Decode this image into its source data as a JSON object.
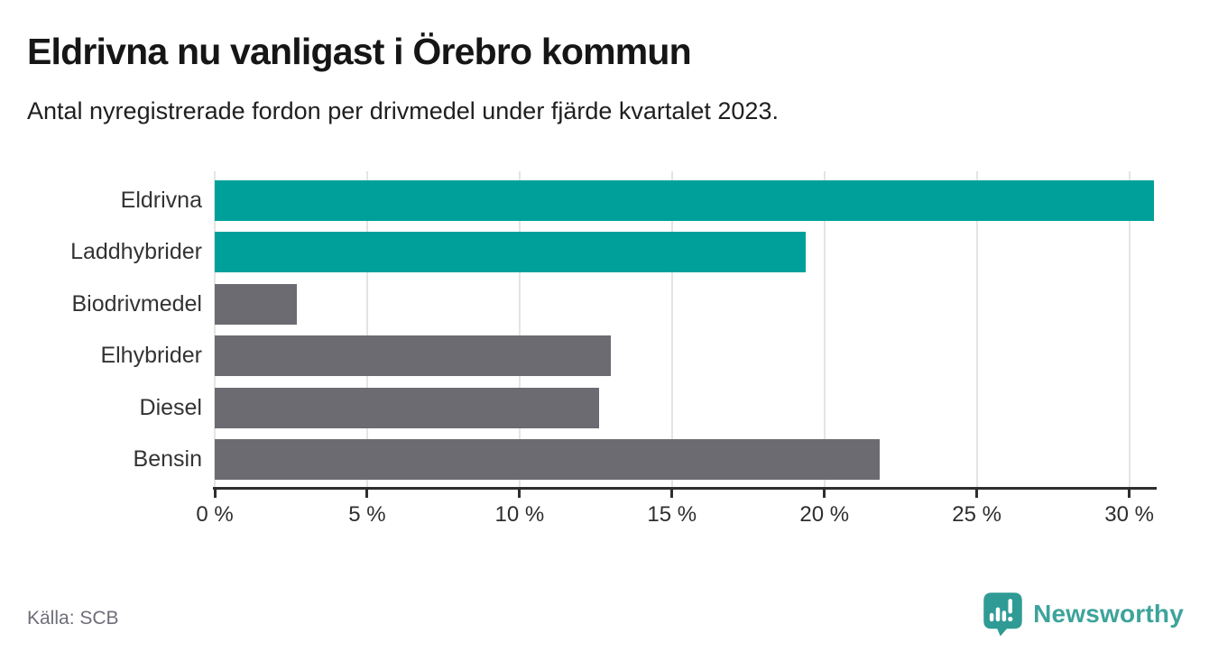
{
  "header": {
    "title": "Eldrivna nu vanligast i Örebro kommun",
    "subtitle": "Antal nyregistrerade fordon per drivmedel under fjärde kvartalet 2023."
  },
  "chart_data": {
    "type": "bar",
    "orientation": "horizontal",
    "title": "Eldrivna nu vanligast i Örebro kommun",
    "subtitle": "Antal nyregistrerade fordon per drivmedel under fjärde kvartalet 2023.",
    "categories": [
      "Eldrivna",
      "Laddhybrider",
      "Biodrivmedel",
      "Elhybrider",
      "Diesel",
      "Bensin"
    ],
    "values": [
      30.8,
      19.4,
      2.7,
      13.0,
      12.6,
      21.8
    ],
    "unit": "%",
    "bar_colors": [
      "#00a09a",
      "#00a09a",
      "#6b6b71",
      "#6b6b71",
      "#6b6b71",
      "#6b6b71"
    ],
    "highlight_color": "#00a09a",
    "default_color": "#6b6b71",
    "x_ticks": [
      0,
      5,
      10,
      15,
      20,
      25,
      30
    ],
    "x_tick_labels": [
      "0 %",
      "5 %",
      "10 %",
      "15 %",
      "20 %",
      "25 %",
      "30 %"
    ],
    "xlim": [
      0,
      30.9
    ],
    "xlabel": "",
    "ylabel": "",
    "grid": "vertical",
    "legend": "none"
  },
  "footer": {
    "source": "Källa: SCB",
    "logo_text": "Newsworthy",
    "logo_color": "#3da39b",
    "logo_icon_color": "#2f9b94"
  }
}
